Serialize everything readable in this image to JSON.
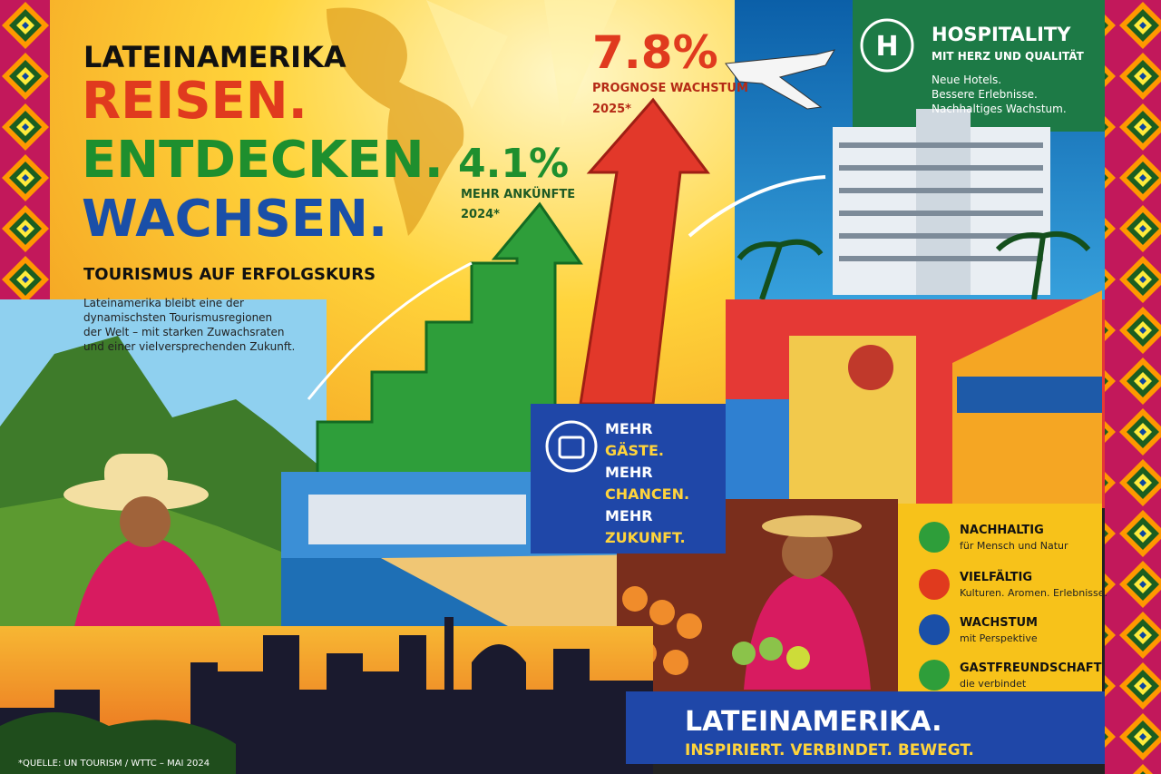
{
  "header": {
    "kicker": "LATEINAMERIKA",
    "lines": [
      "REISEN.",
      "ENTDECKEN.",
      "WACHSEN."
    ],
    "subtitle": "TOURISMUS AUF ERFOLGSKURS",
    "intro": [
      "Lateinamerika bleibt eine der",
      "dynamischsten Tourismusregionen",
      "der Welt – mit starken Zuwachsraten",
      "und einer vielversprechenden Zukunft."
    ]
  },
  "stats": [
    {
      "value": "4.1%",
      "label": "MEHR ANKÜNFTE",
      "note": "2024*"
    },
    {
      "value": "7.8%",
      "label": "PROGNOSE WACHSTUM",
      "note": "2025*"
    }
  ],
  "hospitality": {
    "icon": "H",
    "title": "HOSPITALITY",
    "subtitle": "MIT HERZ UND QUALITÄT",
    "lines": [
      "Neue Hotels.",
      "Bessere Erlebnisse.",
      "Nachhaltiges Wachstum."
    ]
  },
  "mehr_box": {
    "lines": [
      "MEHR",
      "GÄSTE.",
      "MEHR",
      "CHANCEN.",
      "MEHR",
      "ZUKUNFT."
    ]
  },
  "features": [
    {
      "title": "NACHHALTIG",
      "text": "für Mensch und Natur"
    },
    {
      "title": "VIELFÄLTIG",
      "text": "Kulturen. Aromen. Erlebnisse."
    },
    {
      "title": "WACHSTUM",
      "text": "mit Perspektive"
    },
    {
      "title": "GASTFREUNDSCHAFT",
      "text": "die verbindet"
    }
  ],
  "footer": {
    "title": "LATEINAMERIKA.",
    "tagline": "INSPIRIERT. VERBINDET. BEWEGT.",
    "source": "*QUELLE: UN TOURISM / WTTC – MAI 2024"
  }
}
